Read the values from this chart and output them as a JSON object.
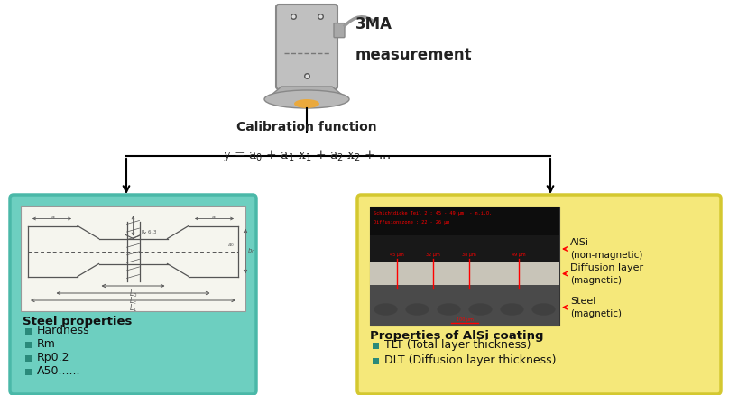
{
  "title_line1": "3MA",
  "title_line2": "measurement",
  "calibration_text": "Calibration function",
  "formula_text": "y = a$_0$ + a$_1$ x$_1$ + a$_2$ x$_2$ + ...",
  "left_box_color": "#6dcfc0",
  "left_box_edge": "#4ab8a8",
  "right_box_color": "#f5e87a",
  "right_box_edge": "#d4c830",
  "drawing_bg": "#f0f0e8",
  "left_title": "Steel properties",
  "left_items": [
    "Hardness",
    "Rm",
    "Rp0.2",
    "A50......"
  ],
  "right_title": "Properties of AlSi coating",
  "right_items": [
    "TLT (Total layer thickness)",
    "DLT (Diffusion layer thickness)"
  ],
  "right_labels": [
    "AlSi\n(non-magnetic)",
    "Diffusion layer\n(magnetic)",
    "Steel\n(magnetic)"
  ],
  "bullet_color": "#2a8a7a",
  "background_color": "#ffffff",
  "sensor_body_color": "#c0c0c0",
  "sensor_edge_color": "#888888",
  "sensor_base_color": "#b8b8b8",
  "glow_color": "#f0a830",
  "line_color": "#000000",
  "draw_line_color": "#555555"
}
